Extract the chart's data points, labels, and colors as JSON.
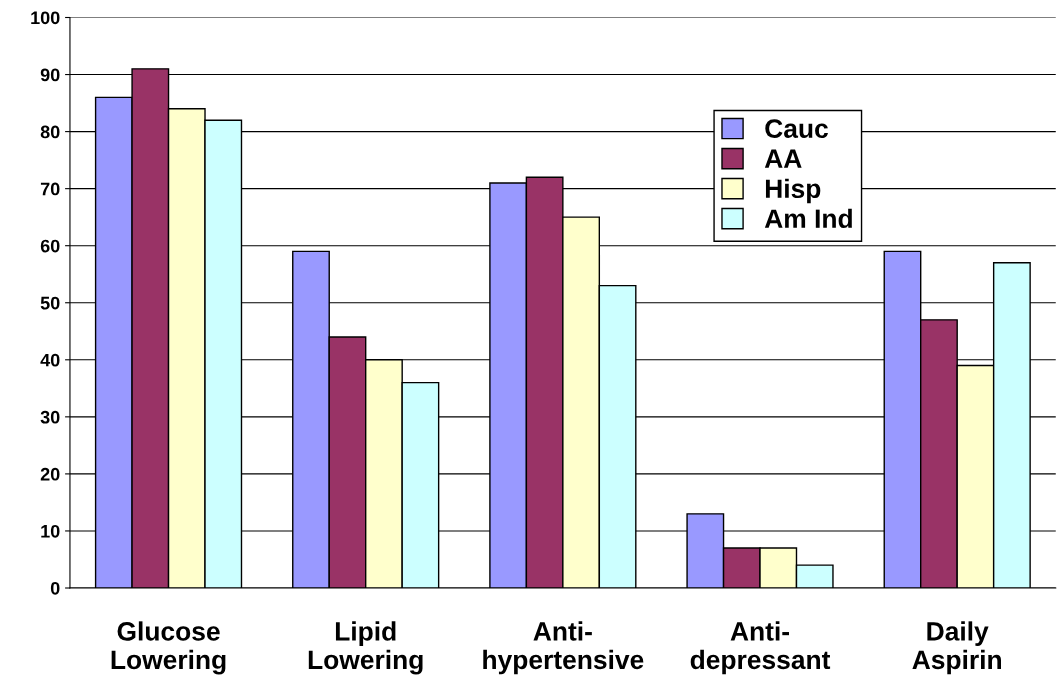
{
  "chart_data": {
    "type": "bar",
    "categories": [
      "Glucose\nLowering",
      "Lipid\nLowering",
      "Anti-\nhypertensive",
      "Anti-\ndepressant",
      "Daily\nAspirin"
    ],
    "series": [
      {
        "name": "Cauc",
        "color": "#9999ff",
        "values": [
          86,
          59,
          71,
          13,
          59
        ]
      },
      {
        "name": "AA",
        "color": "#993366",
        "values": [
          91,
          44,
          72,
          7,
          47
        ]
      },
      {
        "name": "Hisp",
        "color": "#ffffcc",
        "values": [
          84,
          40,
          65,
          7,
          39
        ]
      },
      {
        "name": "Am Ind",
        "color": "#ccffff",
        "values": [
          82,
          36,
          53,
          4,
          57
        ]
      }
    ],
    "ylim": [
      0,
      100
    ],
    "yticks": [
      0,
      10,
      20,
      30,
      40,
      50,
      60,
      70,
      80,
      90,
      100
    ],
    "grid": "y",
    "legend": "top right"
  }
}
